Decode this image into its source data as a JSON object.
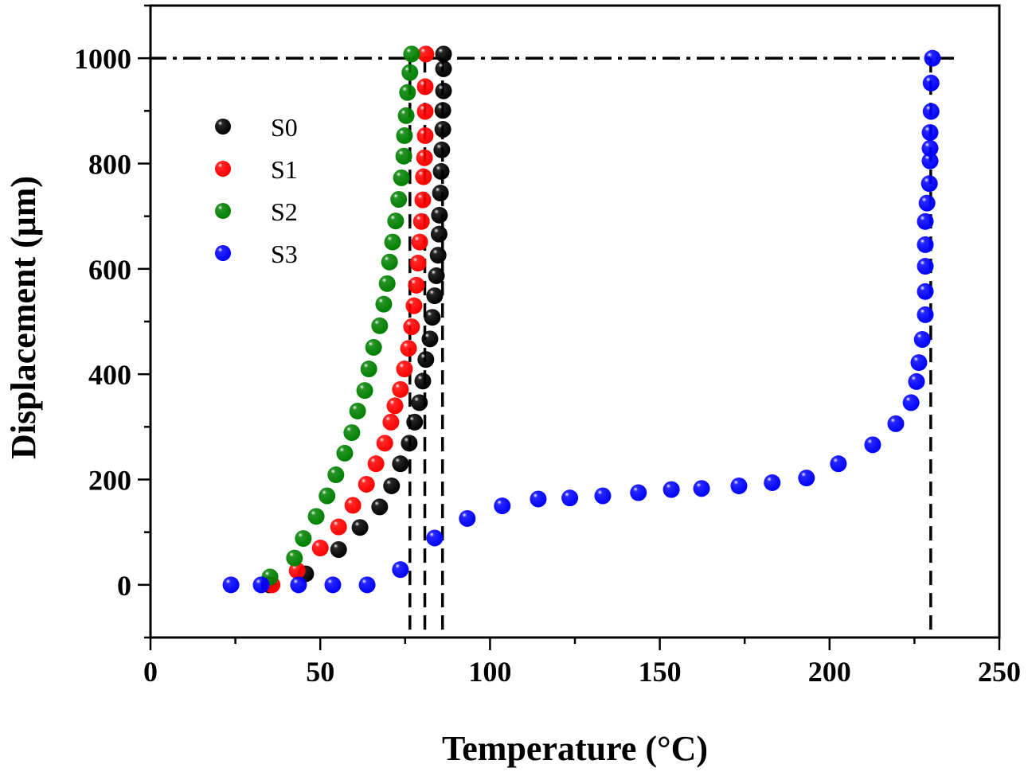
{
  "chart_data": {
    "type": "scatter",
    "title": "",
    "xlabel": "Temperature (°C)",
    "ylabel": "Displacement (μm)",
    "xlim": [
      0,
      250
    ],
    "ylim": [
      -100,
      1100
    ],
    "xticks": [
      0,
      50,
      100,
      150,
      200,
      250
    ],
    "xtick_labels": [
      "0",
      "50",
      "100",
      "150",
      "200",
      "250"
    ],
    "yticks": [
      0,
      200,
      400,
      600,
      800,
      1000
    ],
    "ytick_labels": [
      "0",
      "200",
      "400",
      "600",
      "800",
      "1000"
    ],
    "x_minor_step": 25,
    "y_minor_step": 100,
    "grid": false,
    "legend_position": "upper-left",
    "reference_lines": {
      "horizontal": {
        "y": 1000,
        "style": "dash-dot"
      },
      "vertical": [
        {
          "x": 76.4,
          "style": "dashed",
          "series": "S2"
        },
        {
          "x": 80.8,
          "style": "dashed",
          "series": "S1"
        },
        {
          "x": 86.0,
          "style": "dashed",
          "series": "S0"
        },
        {
          "x": 229.8,
          "style": "dashed",
          "series": "S3"
        }
      ]
    },
    "series": [
      {
        "name": "S0",
        "color": "#000000",
        "points": [
          [
            35,
            0
          ],
          [
            45.7,
            21
          ],
          [
            55.4,
            67
          ],
          [
            61.7,
            109
          ],
          [
            67.5,
            148
          ],
          [
            71,
            188
          ],
          [
            73.6,
            230
          ],
          [
            76.2,
            269
          ],
          [
            77.8,
            309
          ],
          [
            79.2,
            346
          ],
          [
            80.2,
            387
          ],
          [
            81.1,
            428
          ],
          [
            82.3,
            467
          ],
          [
            83,
            508
          ],
          [
            83.7,
            549
          ],
          [
            84.2,
            587
          ],
          [
            84.7,
            626
          ],
          [
            85,
            666
          ],
          [
            85.1,
            702
          ],
          [
            85.4,
            744
          ],
          [
            85.6,
            785
          ],
          [
            85.8,
            826
          ],
          [
            86.1,
            865
          ],
          [
            86.1,
            901
          ],
          [
            86.3,
            938
          ],
          [
            86.3,
            980
          ],
          [
            86.3,
            1008
          ]
        ]
      },
      {
        "name": "S1",
        "color": "#ff0000",
        "points": [
          [
            35.8,
            0
          ],
          [
            43.2,
            27
          ],
          [
            50,
            70
          ],
          [
            55.4,
            110
          ],
          [
            59.6,
            151
          ],
          [
            63.6,
            191
          ],
          [
            66.4,
            230
          ],
          [
            69,
            269
          ],
          [
            70.8,
            309
          ],
          [
            72,
            340
          ],
          [
            73.6,
            371
          ],
          [
            74.8,
            410
          ],
          [
            76,
            449
          ],
          [
            76.9,
            490
          ],
          [
            77.6,
            530
          ],
          [
            78.3,
            569
          ],
          [
            78.8,
            611
          ],
          [
            79.3,
            651
          ],
          [
            79.8,
            690
          ],
          [
            80.2,
            731
          ],
          [
            80.4,
            775
          ],
          [
            80.7,
            811
          ],
          [
            80.9,
            853
          ],
          [
            80.9,
            899
          ],
          [
            80.9,
            946
          ],
          [
            81.1,
            1008
          ]
        ]
      },
      {
        "name": "S2",
        "color": "#008000",
        "points": [
          [
            35.2,
            15
          ],
          [
            42.4,
            51
          ],
          [
            45,
            88
          ],
          [
            48.8,
            130
          ],
          [
            52,
            169
          ],
          [
            54.6,
            209
          ],
          [
            57.2,
            250
          ],
          [
            59.3,
            289
          ],
          [
            61,
            330
          ],
          [
            63.1,
            369
          ],
          [
            64.3,
            410
          ],
          [
            65.7,
            451
          ],
          [
            67.5,
            492
          ],
          [
            68.7,
            533
          ],
          [
            69.7,
            572
          ],
          [
            70.4,
            613
          ],
          [
            71.3,
            651
          ],
          [
            72.2,
            691
          ],
          [
            73.1,
            732
          ],
          [
            73.9,
            773
          ],
          [
            74.6,
            814
          ],
          [
            74.8,
            853
          ],
          [
            75.3,
            891
          ],
          [
            75.7,
            935
          ],
          [
            76.4,
            973
          ],
          [
            76.9,
            1008
          ]
        ]
      },
      {
        "name": "S3",
        "color": "#0000ff",
        "points": [
          [
            23.7,
            0
          ],
          [
            32.6,
            0
          ],
          [
            43.6,
            0
          ],
          [
            53.7,
            0
          ],
          [
            63.8,
            0
          ],
          [
            73.6,
            29
          ],
          [
            83.7,
            89
          ],
          [
            93.3,
            126
          ],
          [
            103.6,
            150
          ],
          [
            114.2,
            163
          ],
          [
            123.5,
            165
          ],
          [
            133.2,
            169
          ],
          [
            143.7,
            175
          ],
          [
            153.4,
            181
          ],
          [
            162.3,
            183
          ],
          [
            173.3,
            188
          ],
          [
            183.1,
            194
          ],
          [
            193.2,
            203
          ],
          [
            202.6,
            230
          ],
          [
            212.7,
            266
          ],
          [
            219.5,
            306
          ],
          [
            224,
            346
          ],
          [
            225.6,
            386
          ],
          [
            226.3,
            422
          ],
          [
            227.3,
            466
          ],
          [
            228.2,
            513
          ],
          [
            228.2,
            557
          ],
          [
            228.2,
            605
          ],
          [
            228.2,
            646
          ],
          [
            228.2,
            690
          ],
          [
            228.7,
            725
          ],
          [
            229.4,
            762
          ],
          [
            229.6,
            805
          ],
          [
            229.6,
            829
          ],
          [
            229.6,
            859
          ],
          [
            229.9,
            899
          ],
          [
            229.9,
            953
          ],
          [
            230.3,
            1000
          ]
        ]
      }
    ]
  }
}
